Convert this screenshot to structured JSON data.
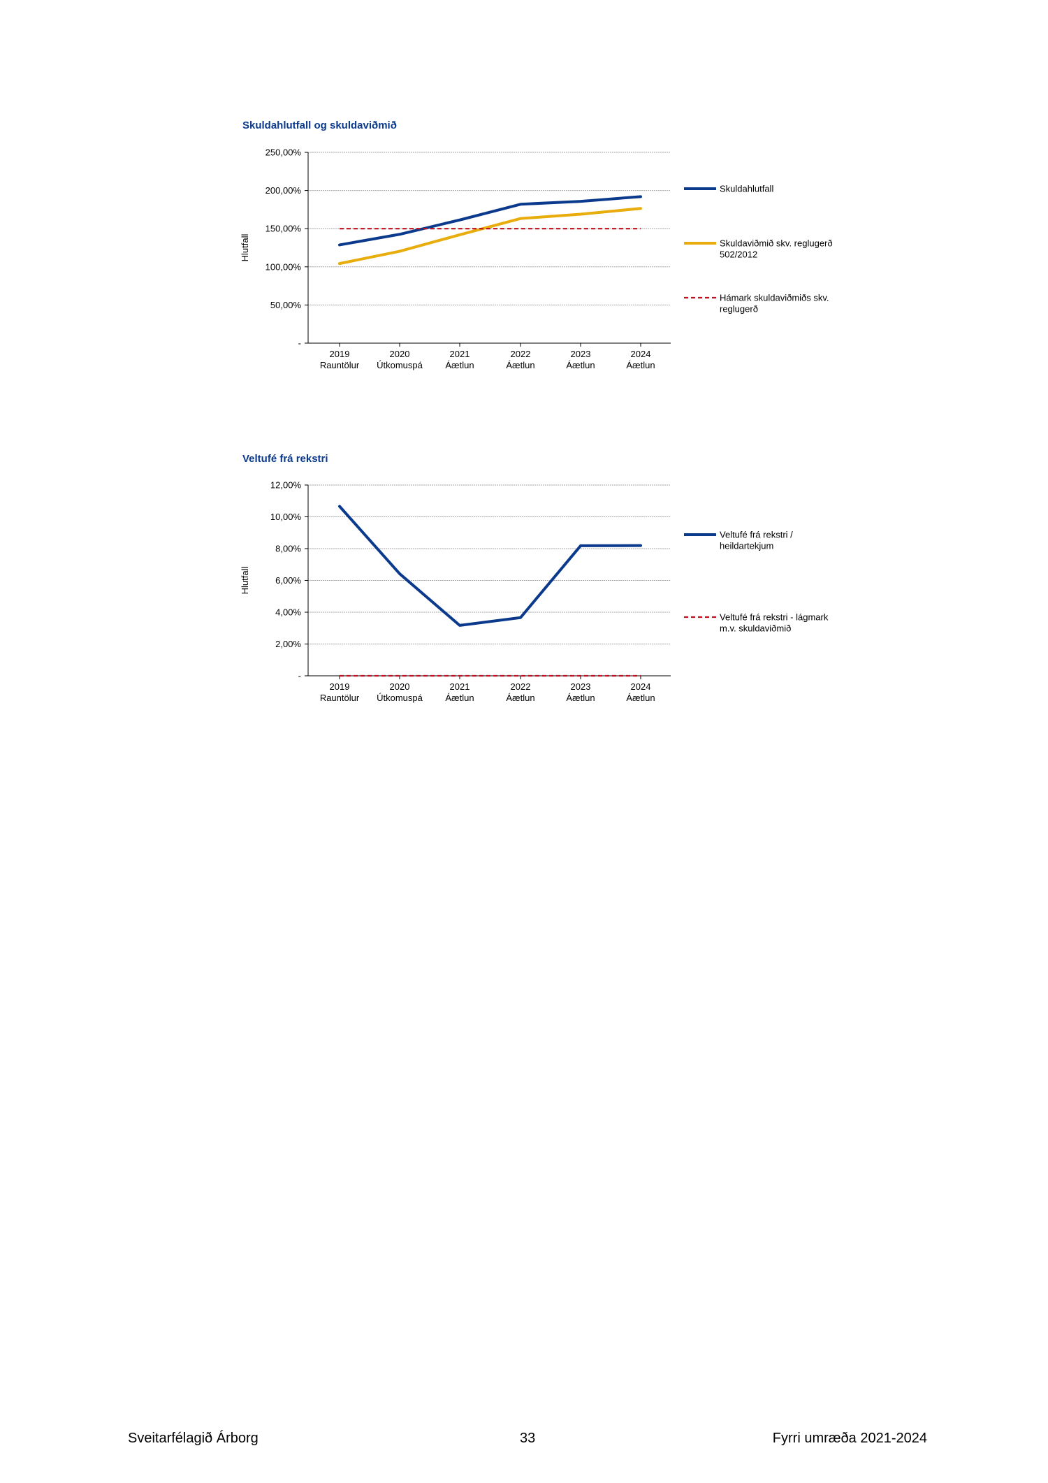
{
  "chart_data": [
    {
      "type": "line",
      "title": "Skuldahlutfall og skuldaviðmið",
      "ylabel": "Hlutfall",
      "xlabel": "",
      "ylim": [
        0,
        250
      ],
      "yticks": [
        "-",
        "50,00%",
        "100,00%",
        "150,00%",
        "200,00%",
        "250,00%"
      ],
      "ytick_values": [
        0,
        50,
        100,
        150,
        200,
        250
      ],
      "categories": [
        [
          "2019",
          "Rauntölur"
        ],
        [
          "2020",
          "Útkomuspá"
        ],
        [
          "2021",
          "Áætlun"
        ],
        [
          "2022",
          "Áætlun"
        ],
        [
          "2023",
          "Áætlun"
        ],
        [
          "2024",
          "Áætlun"
        ]
      ],
      "grid": true,
      "legend_position": "right",
      "series": [
        {
          "name": "Skuldahlutfall",
          "legend": [
            "Skuldahlutfall"
          ],
          "color": "#0b3a8c",
          "dashed": false,
          "values": [
            128.7,
            142.6,
            161.4,
            182.0,
            185.8,
            192.0
          ]
        },
        {
          "name": "Skuldaviðmið skv. reglugerð 502/2012",
          "legend": [
            "Skuldaviðmið skv. reglugerð",
            "502/2012"
          ],
          "color": "#e8ac0c",
          "dashed": false,
          "values": [
            104.3,
            120.4,
            142.0,
            163.3,
            169.0,
            176.5
          ]
        },
        {
          "name": "Hámark skuldaviðmiðs skv. reglugerð",
          "legend": [
            "Hámark skuldaviðmiðs skv.",
            "reglugerð"
          ],
          "color": "#c0101e",
          "dashed": true,
          "values": [
            150,
            150,
            150,
            150,
            150,
            150
          ]
        }
      ]
    },
    {
      "type": "line",
      "title": "Veltufé frá rekstri",
      "ylabel": "Hlutfall",
      "xlabel": "",
      "ylim": [
        0,
        12
      ],
      "yticks": [
        "-",
        "2,00%",
        "4,00%",
        "6,00%",
        "8,00%",
        "10,00%",
        "12,00%"
      ],
      "ytick_values": [
        0,
        2,
        4,
        6,
        8,
        10,
        12
      ],
      "categories": [
        [
          "2019",
          "Rauntölur"
        ],
        [
          "2020",
          "Útkomuspá"
        ],
        [
          "2021",
          "Áætlun"
        ],
        [
          "2022",
          "Áætlun"
        ],
        [
          "2023",
          "Áætlun"
        ],
        [
          "2024",
          "Áætlun"
        ]
      ],
      "grid": true,
      "legend_position": "right",
      "series": [
        {
          "name": "Veltufé frá rekstri / heildartekjum",
          "legend": [
            "Veltufé frá rekstri /",
            "heildartekjum"
          ],
          "color": "#0b3a8c",
          "dashed": false,
          "values": [
            10.66,
            6.42,
            3.17,
            3.66,
            8.18,
            8.19
          ]
        },
        {
          "name": "Veltufé frá rekstri - lágmark m.v. skuldaviðmið",
          "legend": [
            "Veltufé frá rekstri - lágmark",
            "m.v. skuldaviðmið"
          ],
          "color": "#c0101e",
          "dashed": true,
          "values": [
            0,
            0,
            0,
            0,
            0,
            0
          ]
        }
      ]
    }
  ],
  "footer": {
    "left": "Sveitarfélagið Árborg",
    "center": "33",
    "right": "Fyrri umræða 2021-2024"
  }
}
